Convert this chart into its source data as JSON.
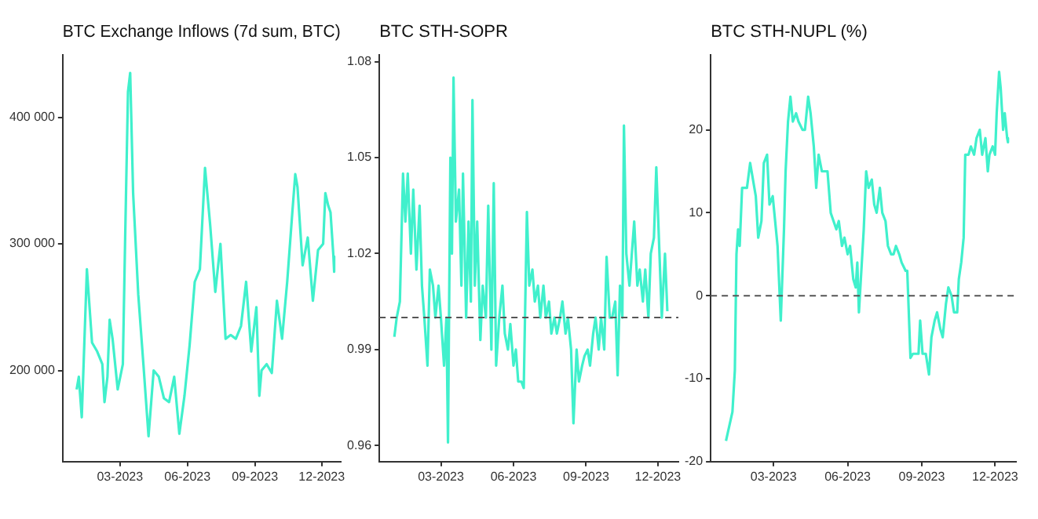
{
  "chart_data": [
    {
      "type": "line",
      "title": "BTC Exchange Inflows (7d sum, BTC)",
      "xlim": [
        "2022-12-13",
        "2023-12-27"
      ],
      "xticks": [
        {
          "value": "2023-03-01",
          "label": "03-2023"
        },
        {
          "value": "2023-06-01",
          "label": "06-2023"
        },
        {
          "value": "2023-09-01",
          "label": "09-2023"
        },
        {
          "value": "2023-12-01",
          "label": "12-2023"
        }
      ],
      "ylim": [
        128000,
        449000
      ],
      "yticks": [
        {
          "value": 200000,
          "label": "200 000"
        },
        {
          "value": 300000,
          "label": "300 000"
        },
        {
          "value": 400000,
          "label": "400 000"
        }
      ],
      "x": [
        "2023-01-01",
        "2023-01-04",
        "2023-01-08",
        "2023-01-15",
        "2023-01-22",
        "2023-01-29",
        "2023-02-05",
        "2023-02-08",
        "2023-02-12",
        "2023-02-15",
        "2023-02-19",
        "2023-02-26",
        "2023-03-05",
        "2023-03-08",
        "2023-03-12",
        "2023-03-15",
        "2023-03-19",
        "2023-03-26",
        "2023-04-02",
        "2023-04-09",
        "2023-04-16",
        "2023-04-23",
        "2023-04-30",
        "2023-05-07",
        "2023-05-14",
        "2023-05-21",
        "2023-05-28",
        "2023-06-04",
        "2023-06-11",
        "2023-06-18",
        "2023-06-25",
        "2023-07-02",
        "2023-07-09",
        "2023-07-16",
        "2023-07-23",
        "2023-07-30",
        "2023-08-06",
        "2023-08-13",
        "2023-08-20",
        "2023-08-27",
        "2023-09-03",
        "2023-09-07",
        "2023-09-10",
        "2023-09-17",
        "2023-09-24",
        "2023-10-01",
        "2023-10-08",
        "2023-10-15",
        "2023-10-22",
        "2023-10-26",
        "2023-10-29",
        "2023-11-05",
        "2023-11-12",
        "2023-11-19",
        "2023-11-26",
        "2023-12-03",
        "2023-12-06",
        "2023-12-10",
        "2023-12-13",
        "2023-12-17",
        "2023-12-18"
      ],
      "series": [
        {
          "color": "#40f0cc",
          "values": [
            185000,
            195000,
            163000,
            280000,
            222000,
            215000,
            205000,
            175000,
            195000,
            240000,
            225000,
            185000,
            205000,
            300000,
            420000,
            435000,
            340000,
            260000,
            205000,
            148000,
            200000,
            195000,
            178000,
            175000,
            195000,
            150000,
            180000,
            220000,
            270000,
            280000,
            360000,
            315000,
            262000,
            300000,
            225000,
            228000,
            225000,
            235000,
            270000,
            215000,
            250000,
            180000,
            200000,
            205000,
            198000,
            255000,
            225000,
            270000,
            325000,
            355000,
            345000,
            283000,
            305000,
            255000,
            295000,
            300000,
            340000,
            330000,
            325000,
            290000,
            278000
          ]
        }
      ]
    },
    {
      "type": "line",
      "title": "BTC STH-SOPR",
      "xlim": [
        "2022-12-13",
        "2023-12-27"
      ],
      "xticks": [
        {
          "value": "2023-03-01",
          "label": "03-2023"
        },
        {
          "value": "2023-06-01",
          "label": "06-2023"
        },
        {
          "value": "2023-09-01",
          "label": "09-2023"
        },
        {
          "value": "2023-12-01",
          "label": "12-2023"
        }
      ],
      "ylim": [
        0.955,
        1.082
      ],
      "yticks": [
        0.96,
        0.99,
        1.02,
        1.05,
        1.08
      ],
      "ref_lines": [
        {
          "axis": "y",
          "value": 1,
          "color": "#555555",
          "line_style": "dashed"
        }
      ],
      "x": [
        "2023-01-01",
        "2023-01-04",
        "2023-01-08",
        "2023-01-12",
        "2023-01-15",
        "2023-01-18",
        "2023-01-22",
        "2023-01-25",
        "2023-01-29",
        "2023-02-02",
        "2023-02-05",
        "2023-02-08",
        "2023-02-12",
        "2023-02-15",
        "2023-02-19",
        "2023-02-22",
        "2023-02-26",
        "2023-03-01",
        "2023-03-05",
        "2023-03-08",
        "2023-03-10",
        "2023-03-13",
        "2023-03-15",
        "2023-03-17",
        "2023-03-20",
        "2023-03-24",
        "2023-03-27",
        "2023-03-29",
        "2023-04-02",
        "2023-04-05",
        "2023-04-08",
        "2023-04-10",
        "2023-04-13",
        "2023-04-16",
        "2023-04-20",
        "2023-04-23",
        "2023-04-27",
        "2023-04-30",
        "2023-05-04",
        "2023-05-07",
        "2023-05-10",
        "2023-05-14",
        "2023-05-18",
        "2023-05-21",
        "2023-05-25",
        "2023-05-28",
        "2023-06-01",
        "2023-06-04",
        "2023-06-07",
        "2023-06-11",
        "2023-06-14",
        "2023-06-18",
        "2023-06-21",
        "2023-06-25",
        "2023-06-28",
        "2023-07-02",
        "2023-07-05",
        "2023-07-09",
        "2023-07-12",
        "2023-07-16",
        "2023-07-19",
        "2023-07-23",
        "2023-07-26",
        "2023-07-30",
        "2023-08-02",
        "2023-08-06",
        "2023-08-09",
        "2023-08-13",
        "2023-08-16",
        "2023-08-20",
        "2023-08-23",
        "2023-08-27",
        "2023-08-30",
        "2023-09-03",
        "2023-09-06",
        "2023-09-10",
        "2023-09-13",
        "2023-09-17",
        "2023-09-20",
        "2023-09-24",
        "2023-09-27",
        "2023-10-01",
        "2023-10-04",
        "2023-10-08",
        "2023-10-11",
        "2023-10-14",
        "2023-10-17",
        "2023-10-19",
        "2023-10-22",
        "2023-10-26",
        "2023-10-29",
        "2023-11-01",
        "2023-11-05",
        "2023-11-08",
        "2023-11-12",
        "2023-11-15",
        "2023-11-19",
        "2023-11-22",
        "2023-11-26",
        "2023-11-29",
        "2023-12-03",
        "2023-12-06",
        "2023-12-10",
        "2023-12-13"
      ],
      "series": [
        {
          "color": "#40f0cc",
          "values": [
            0.994,
            1.0,
            1.005,
            1.045,
            1.03,
            1.045,
            1.02,
            1.04,
            1.015,
            1.035,
            1.01,
            1.0,
            0.985,
            1.015,
            1.01,
            1.0,
            1.01,
            1.0,
            0.985,
            1.0,
            0.961,
            1.05,
            1.02,
            1.075,
            1.03,
            1.04,
            1.01,
            1.045,
            1.0,
            1.03,
            1.005,
            1.068,
            1.01,
            1.03,
            0.993,
            1.01,
            1.0,
            1.035,
            0.99,
            1.042,
            0.985,
            1.0,
            1.01,
            0.995,
            0.99,
            0.998,
            0.985,
            0.99,
            0.98,
            0.98,
            0.978,
            1.033,
            1.01,
            1.015,
            1.005,
            1.01,
            1.0,
            1.01,
            1.0,
            1.005,
            0.995,
            1.0,
            0.995,
            1.0,
            1.005,
            0.995,
            1.0,
            0.99,
            0.967,
            0.99,
            0.98,
            0.985,
            0.988,
            0.99,
            0.985,
            0.995,
            1.0,
            0.99,
            1.0,
            0.99,
            1.019,
            1.0,
            1.0,
            1.005,
            0.982,
            1.01,
            1.0,
            1.06,
            1.02,
            1.01,
            1.02,
            1.03,
            1.01,
            1.015,
            1.005,
            1.015,
            1.0,
            1.02,
            1.025,
            1.047,
            1.02,
            1.0,
            1.02,
            1.002
          ]
        }
      ]
    },
    {
      "type": "line",
      "title": "BTC STH-NUPL (%)",
      "xlim": [
        "2022-12-13",
        "2023-12-27"
      ],
      "xticks": [
        {
          "value": "2023-03-01",
          "label": "03-2023"
        },
        {
          "value": "2023-06-01",
          "label": "06-2023"
        },
        {
          "value": "2023-09-01",
          "label": "09-2023"
        },
        {
          "value": "2023-12-01",
          "label": "12-2023"
        }
      ],
      "ylim": [
        -20,
        29
      ],
      "yticks": [
        -20,
        -10,
        0,
        10,
        20
      ],
      "ref_lines": [
        {
          "axis": "y",
          "value": 0,
          "color": "#555555",
          "line_style": "dashed"
        }
      ],
      "x": [
        "2023-01-01",
        "2023-01-09",
        "2023-01-12",
        "2023-01-14",
        "2023-01-16",
        "2023-01-18",
        "2023-01-21",
        "2023-01-27",
        "2023-01-31",
        "2023-02-07",
        "2023-02-10",
        "2023-02-14",
        "2023-02-17",
        "2023-02-21",
        "2023-02-24",
        "2023-02-28",
        "2023-03-06",
        "2023-03-10",
        "2023-03-14",
        "2023-03-16",
        "2023-03-19",
        "2023-03-22",
        "2023-03-25",
        "2023-03-29",
        "2023-04-01",
        "2023-04-06",
        "2023-04-09",
        "2023-04-13",
        "2023-04-16",
        "2023-04-20",
        "2023-04-23",
        "2023-04-26",
        "2023-04-30",
        "2023-05-07",
        "2023-05-11",
        "2023-05-18",
        "2023-05-21",
        "2023-05-25",
        "2023-05-28",
        "2023-06-01",
        "2023-06-04",
        "2023-06-08",
        "2023-06-11",
        "2023-06-13",
        "2023-06-15",
        "2023-06-18",
        "2023-06-21",
        "2023-06-24",
        "2023-06-27",
        "2023-07-01",
        "2023-07-04",
        "2023-07-07",
        "2023-07-11",
        "2023-07-14",
        "2023-07-18",
        "2023-07-21",
        "2023-07-25",
        "2023-07-28",
        "2023-07-31",
        "2023-08-04",
        "2023-08-07",
        "2023-08-12",
        "2023-08-14",
        "2023-08-18",
        "2023-08-21",
        "2023-08-28",
        "2023-08-30",
        "2023-09-02",
        "2023-09-06",
        "2023-09-10",
        "2023-09-13",
        "2023-09-17",
        "2023-09-20",
        "2023-09-24",
        "2023-09-27",
        "2023-10-01",
        "2023-10-04",
        "2023-10-08",
        "2023-10-11",
        "2023-10-15",
        "2023-10-17",
        "2023-10-20",
        "2023-10-23",
        "2023-10-25",
        "2023-10-29",
        "2023-11-01",
        "2023-11-05",
        "2023-11-08",
        "2023-11-12",
        "2023-11-15",
        "2023-11-19",
        "2023-11-22",
        "2023-11-24",
        "2023-11-28",
        "2023-12-01",
        "2023-12-03",
        "2023-12-06",
        "2023-12-08",
        "2023-12-11",
        "2023-12-13",
        "2023-12-16",
        "2023-12-17"
      ],
      "series": [
        {
          "color": "#40f0cc",
          "values": [
            -17.5,
            -14,
            -9,
            5,
            8,
            6,
            13,
            13,
            16,
            12,
            7,
            9,
            16,
            17,
            11,
            12,
            6,
            -3,
            8,
            15,
            21,
            24,
            21,
            22,
            21,
            20,
            20,
            24,
            22,
            18,
            13,
            17,
            15,
            15,
            10,
            8,
            9,
            6,
            7,
            5,
            6,
            2,
            1,
            4,
            -2,
            3,
            8,
            15,
            13,
            14,
            11,
            10,
            13,
            10,
            9,
            6,
            5,
            5,
            6,
            5,
            4,
            3,
            3,
            -7.5,
            -7,
            -7,
            -3,
            -7,
            -7,
            -9.5,
            -5,
            -3,
            -2,
            -4,
            -5,
            -1,
            1,
            0,
            -2,
            -2,
            2,
            4,
            7,
            17,
            17,
            18,
            17,
            19,
            20,
            17,
            19,
            15,
            17,
            18,
            17,
            22,
            27,
            25,
            20,
            22,
            19,
            18.5
          ]
        }
      ]
    }
  ]
}
